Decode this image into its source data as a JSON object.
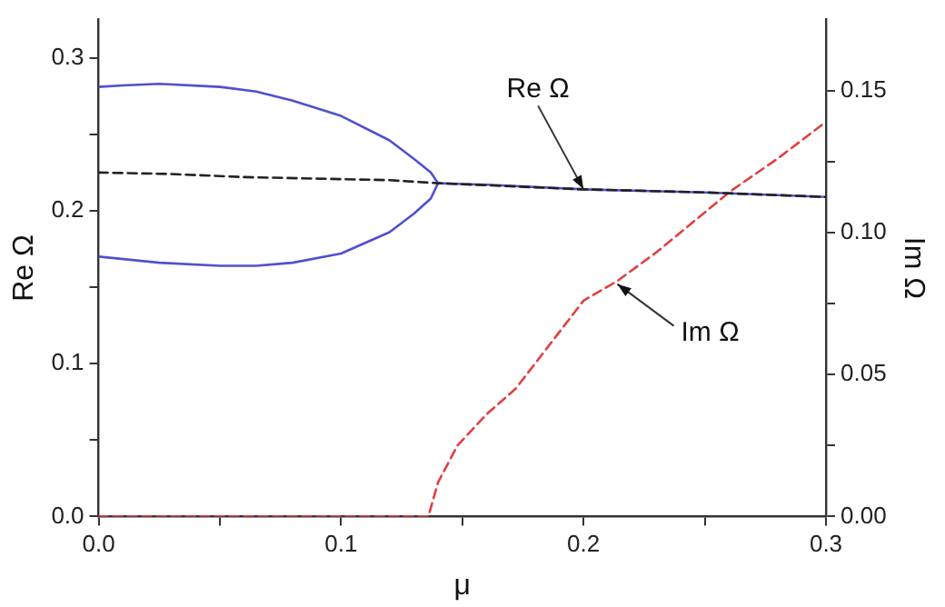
{
  "chart_data": {
    "type": "line",
    "xlabel": "μ",
    "ylabel": "Re Ω",
    "y2label": "Im Ω",
    "xlim": [
      0,
      0.3
    ],
    "xticks": [
      {
        "value": 0,
        "label": "0.0"
      },
      {
        "value": 0.05,
        "label": null
      },
      {
        "value": 0.1,
        "label": "0.1"
      },
      {
        "value": 0.15,
        "label": null
      },
      {
        "value": 0.2,
        "label": "0.2"
      },
      {
        "value": 0.25,
        "label": null
      },
      {
        "value": 0.3,
        "label": "0.3"
      }
    ],
    "ylim": [
      0,
      0.325
    ],
    "yticks": [
      {
        "value": 0,
        "label": "0.0"
      },
      {
        "value": 0.05,
        "label": null
      },
      {
        "value": 0.1,
        "label": "0.1"
      },
      {
        "value": 0.15,
        "label": null
      },
      {
        "value": 0.2,
        "label": "0.2"
      },
      {
        "value": 0.25,
        "label": null
      },
      {
        "value": 0.3,
        "label": "0.3"
      }
    ],
    "y2lim": [
      0,
      0.175
    ],
    "y2ticks": [
      {
        "value": 0,
        "label": "0.00"
      },
      {
        "value": 0.025,
        "label": null
      },
      {
        "value": 0.05,
        "label": "0.05"
      },
      {
        "value": 0.075,
        "label": null
      },
      {
        "value": 0.1,
        "label": "0.10"
      },
      {
        "value": 0.125,
        "label": null
      },
      {
        "value": 0.15,
        "label": "0.15"
      }
    ],
    "grid": false,
    "legend": false,
    "marker": "none",
    "series": [
      {
        "color": "#222222",
        "line_style": "dashed",
        "x": [
          0,
          0.03,
          0.06,
          0.09,
          0.12,
          0.14,
          0.2,
          0.25,
          0.3
        ],
        "values": [
          0.225,
          0.224,
          0.222,
          0.221,
          0.22,
          0.218,
          0.214,
          0.212,
          0.209
        ]
      },
      {
        "color": "#5050d0",
        "line_style": "solid",
        "x": [
          0,
          0.01,
          0.025,
          0.05,
          0.065,
          0.08,
          0.1,
          0.12,
          0.13,
          0.137,
          0.14,
          0.16,
          0.2,
          0.25,
          0.3
        ],
        "values": [
          0.281,
          0.282,
          0.283,
          0.281,
          0.278,
          0.272,
          0.262,
          0.246,
          0.234,
          0.225,
          0.218,
          0.217,
          0.214,
          0.212,
          0.209
        ]
      },
      {
        "color": "#5050d0",
        "line_style": "solid",
        "x": [
          0,
          0.025,
          0.05,
          0.065,
          0.08,
          0.1,
          0.12,
          0.13,
          0.137,
          0.14
        ],
        "values": [
          0.17,
          0.166,
          0.164,
          0.164,
          0.166,
          0.172,
          0.186,
          0.198,
          0.208,
          0.218
        ]
      },
      {
        "color": "#e04040",
        "line_style": "dashed",
        "axis": "y2",
        "x": [
          0,
          0.136,
          0.14,
          0.148,
          0.16,
          0.172,
          0.2,
          0.214,
          0.23,
          0.2605,
          0.28,
          0.3
        ],
        "values": [
          0,
          0,
          0.012,
          0.025,
          0.036,
          0.045,
          0.076,
          0.083,
          0.093,
          0.1145,
          0.126,
          0.139
        ]
      }
    ],
    "annotations": [
      {
        "text": "Re Ω",
        "x": 0.2,
        "y": 0.214
      },
      {
        "text": "Im Ω",
        "x": 0.214,
        "y": 0.152
      }
    ]
  }
}
